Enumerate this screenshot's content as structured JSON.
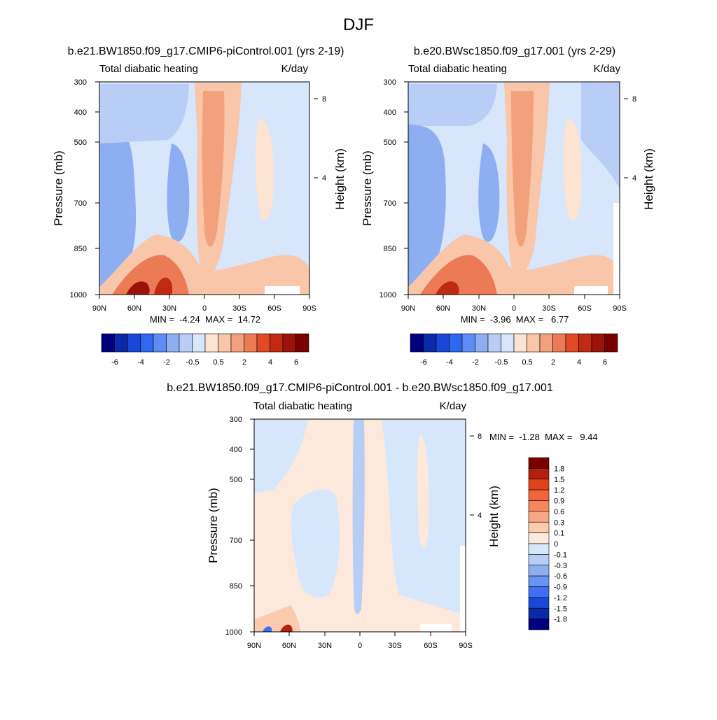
{
  "title": "DJF",
  "chart_data": [
    {
      "type": "heatmap",
      "title": "b.e21.BW1850.f09_g17.CMIP6-piControl.001 (yrs 2-19)",
      "variable": "Total diabatic heating",
      "units": "K/day",
      "ylabel": "Pressure (mb)",
      "ylabel_right": "Height (km)",
      "x_ticks": [
        "90N",
        "60N",
        "30N",
        "0",
        "30S",
        "60S",
        "90S"
      ],
      "y_ticks": [
        "300",
        "400",
        "500",
        "700",
        "850",
        "1000"
      ],
      "y_ticks_right": [
        "8",
        "4"
      ],
      "min_label": "MIN =  -4.24  MAX =  14.72",
      "min": -4.24,
      "max": 14.72,
      "colorbar_labels": [
        "-6",
        "-4",
        "-2",
        "-0.5",
        "0.5",
        "2",
        "4",
        "6"
      ]
    },
    {
      "type": "heatmap",
      "title": "b.e20.BWsc1850.f09_g17.001 (yrs 2-29)",
      "variable": "Total diabatic heating",
      "units": "K/day",
      "ylabel": "Pressure (mb)",
      "ylabel_right": "Height (km)",
      "x_ticks": [
        "90N",
        "60N",
        "30N",
        "0",
        "30S",
        "60S",
        "90S"
      ],
      "y_ticks": [
        "300",
        "400",
        "500",
        "700",
        "850",
        "1000"
      ],
      "y_ticks_right": [
        "8",
        "4"
      ],
      "min_label": "MIN =  -3.96  MAX =   6.77",
      "min": -3.96,
      "max": 6.77,
      "colorbar_labels": [
        "-6",
        "-4",
        "-2",
        "-0.5",
        "0.5",
        "2",
        "4",
        "6"
      ]
    },
    {
      "type": "heatmap",
      "title": "b.e21.BW1850.f09_g17.CMIP6-piControl.001 - b.e20.BWsc1850.f09_g17.001",
      "variable": "Total diabatic heating",
      "units": "K/day",
      "ylabel": "Pressure (mb)",
      "ylabel_right": "Height (km)",
      "x_ticks": [
        "90N",
        "60N",
        "30N",
        "0",
        "30S",
        "60S",
        "90S"
      ],
      "y_ticks": [
        "300",
        "400",
        "500",
        "700",
        "850",
        "1000"
      ],
      "y_ticks_right": [
        "8",
        "4"
      ],
      "min_label": "MIN =  -1.28  MAX =   9.44",
      "min": -1.28,
      "max": 9.44,
      "colorbar_labels": [
        "1.8",
        "1.5",
        "1.2",
        "0.9",
        "0.6",
        "0.3",
        "0.1",
        "0",
        "-0.1",
        "-0.3",
        "-0.6",
        "-0.9",
        "-1.2",
        "-1.5",
        "-1.8"
      ]
    }
  ],
  "colors": {
    "main_scale": [
      "#00007f",
      "#0b2aa8",
      "#1a48d6",
      "#2f67f0",
      "#5e8cf5",
      "#8daff2",
      "#b8cef6",
      "#d7e6fb",
      "#fde3d2",
      "#f9c6a9",
      "#f3a07c",
      "#ec7a55",
      "#e04a26",
      "#c02a10",
      "#9a1208",
      "#7a0000"
    ],
    "diff_scale": [
      "#7a0000",
      "#b3200c",
      "#e0421c",
      "#f2643a",
      "#f3875d",
      "#f7a883",
      "#fbcbb0",
      "#fde9dc",
      "#d6e6fb",
      "#b6cdf6",
      "#8caff2",
      "#6a93f4",
      "#3e6ef4",
      "#1a48d6",
      "#0b2aa8",
      "#00007f"
    ]
  }
}
